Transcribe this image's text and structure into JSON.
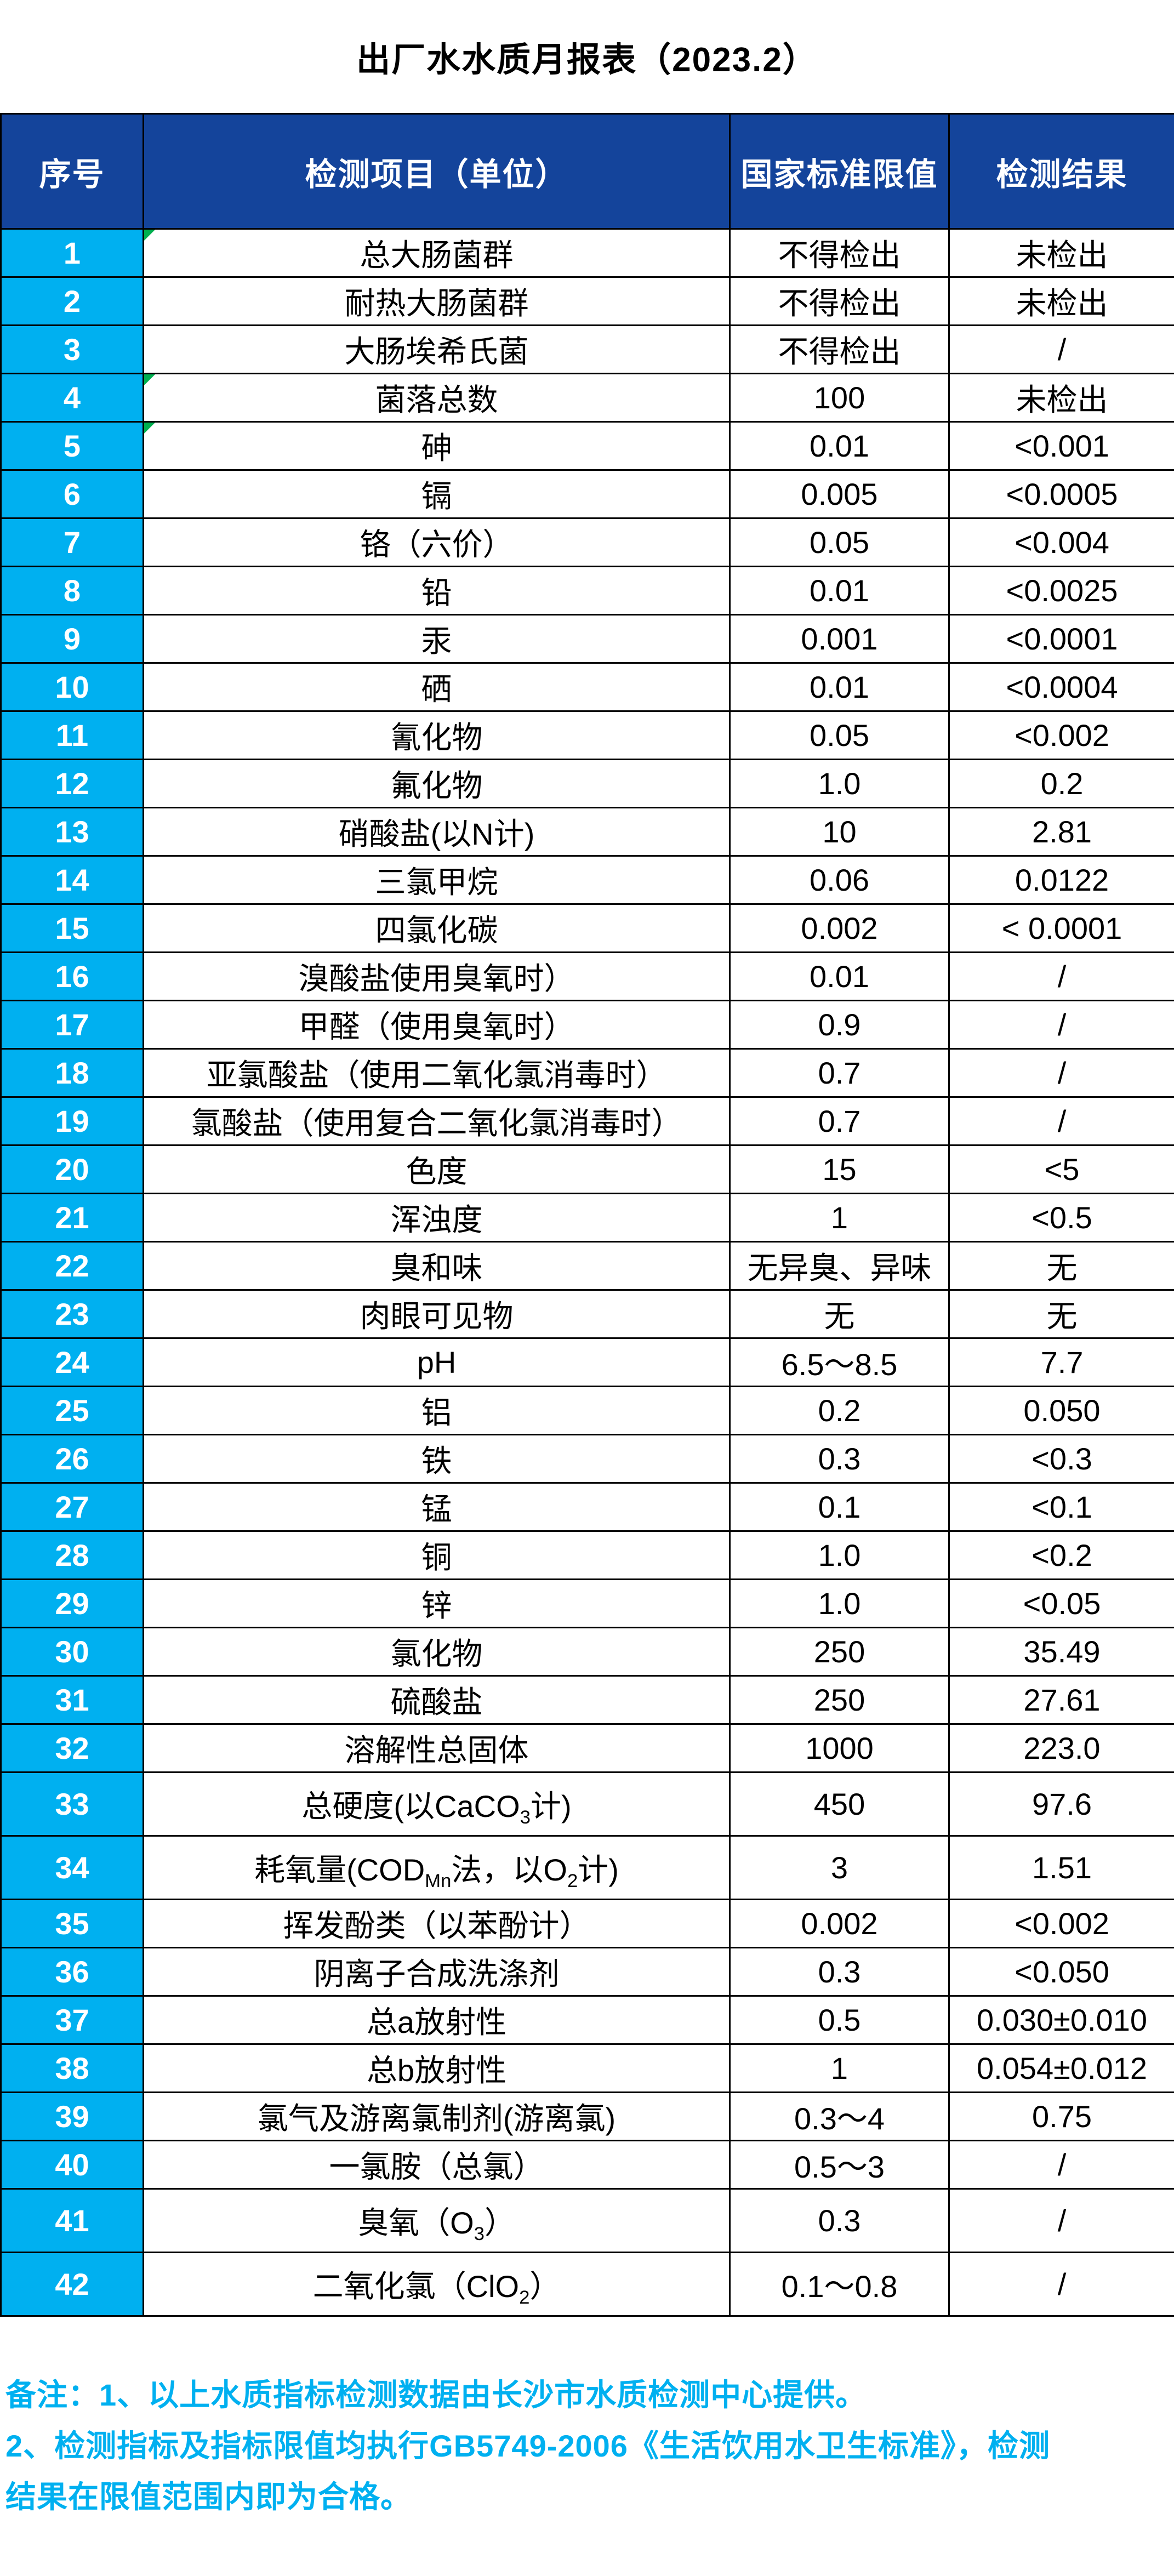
{
  "title": "出厂水水质月报表（2023.2）",
  "colors": {
    "header_bg": "#14449B",
    "index_bg": "#00B0F0",
    "note_text": "#00B0F0",
    "border": "#000000",
    "flag_green": "#00B050"
  },
  "table": {
    "headers": {
      "no": "序号",
      "item": "检测项目（单位）",
      "limit": "国家标准限值",
      "result": "检测结果"
    },
    "flagged_rows": [
      1,
      4,
      5
    ],
    "rows": [
      {
        "no": "1",
        "item": "总大肠菌群",
        "limit": "不得检出",
        "result": "未检出"
      },
      {
        "no": "2",
        "item": "耐热大肠菌群",
        "limit": "不得检出",
        "result": "未检出"
      },
      {
        "no": "3",
        "item": "大肠埃希氏菌",
        "limit": "不得检出",
        "result": "/"
      },
      {
        "no": "4",
        "item": "菌落总数",
        "limit": "100",
        "result": "未检出"
      },
      {
        "no": "5",
        "item": "砷",
        "limit": "0.01",
        "result": "<0.001"
      },
      {
        "no": "6",
        "item": "镉",
        "limit": "0.005",
        "result": "<0.0005"
      },
      {
        "no": "7",
        "item": "铬（六价）",
        "limit": "0.05",
        "result": "<0.004"
      },
      {
        "no": "8",
        "item": "铅",
        "limit": "0.01",
        "result": "<0.0025"
      },
      {
        "no": "9",
        "item": "汞",
        "limit": "0.001",
        "result": "<0.0001"
      },
      {
        "no": "10",
        "item": "硒",
        "limit": "0.01",
        "result": "<0.0004"
      },
      {
        "no": "11",
        "item": "氰化物",
        "limit": "0.05",
        "result": "<0.002"
      },
      {
        "no": "12",
        "item": "氟化物",
        "limit": "1.0",
        "result": "0.2"
      },
      {
        "no": "13",
        "item": "硝酸盐(以N计)",
        "limit": "10",
        "result": "2.81"
      },
      {
        "no": "14",
        "item": "三氯甲烷",
        "limit": "0.06",
        "result": "0.0122"
      },
      {
        "no": "15",
        "item": "四氯化碳",
        "limit": "0.002",
        "result": "< 0.0001"
      },
      {
        "no": "16",
        "item": "溴酸盐使用臭氧时）",
        "limit": "0.01",
        "result": "/"
      },
      {
        "no": "17",
        "item": "甲醛（使用臭氧时）",
        "limit": "0.9",
        "result": "/"
      },
      {
        "no": "18",
        "item": "亚氯酸盐（使用二氧化氯消毒时）",
        "limit": "0.7",
        "result": "/"
      },
      {
        "no": "19",
        "item": "氯酸盐（使用复合二氧化氯消毒时）",
        "limit": "0.7",
        "result": "/"
      },
      {
        "no": "20",
        "item": "色度",
        "limit": "15",
        "result": "<5"
      },
      {
        "no": "21",
        "item": "浑浊度",
        "limit": "1",
        "result": "<0.5"
      },
      {
        "no": "22",
        "item": "臭和味",
        "limit": "无异臭、异味",
        "result": "无"
      },
      {
        "no": "23",
        "item": "肉眼可见物",
        "limit": "无",
        "result": "无"
      },
      {
        "no": "24",
        "item": "pH",
        "limit": "6.5～8.5",
        "result": "7.7"
      },
      {
        "no": "25",
        "item": "铝",
        "limit": "0.2",
        "result": "0.050"
      },
      {
        "no": "26",
        "item": "铁",
        "limit": "0.3",
        "result": "<0.3"
      },
      {
        "no": "27",
        "item": "锰",
        "limit": "0.1",
        "result": "<0.1"
      },
      {
        "no": "28",
        "item": "铜",
        "limit": "1.0",
        "result": "<0.2"
      },
      {
        "no": "29",
        "item": "锌",
        "limit": "1.0",
        "result": "<0.05"
      },
      {
        "no": "30",
        "item": "氯化物",
        "limit": "250",
        "result": "35.49"
      },
      {
        "no": "31",
        "item": "硫酸盐",
        "limit": "250",
        "result": "27.61"
      },
      {
        "no": "32",
        "item": "溶解性总固体",
        "limit": "1000",
        "result": "223.0"
      },
      {
        "no": "33",
        "item": "总硬度(以CaCO{3}计)",
        "limit": "450",
        "result": "97.6"
      },
      {
        "no": "34",
        "item": "耗氧量(COD{Mn}法，以O{2}计)",
        "limit": "3",
        "result": "1.51"
      },
      {
        "no": "35",
        "item": "挥发酚类（以苯酚计）",
        "limit": "0.002",
        "result": "<0.002"
      },
      {
        "no": "36",
        "item": "阴离子合成洗涤剂",
        "limit": "0.3",
        "result": "<0.050"
      },
      {
        "no": "37",
        "item": "总a放射性",
        "limit": "0.5",
        "result": "0.030±0.010"
      },
      {
        "no": "38",
        "item": "总b放射性",
        "limit": "1",
        "result": "0.054±0.012"
      },
      {
        "no": "39",
        "item": "氯气及游离氯制剂(游离氯)",
        "limit": "0.3～4",
        "result": "0.75"
      },
      {
        "no": "40",
        "item": "一氯胺（总氯）",
        "limit": "0.5～3",
        "result": "/"
      },
      {
        "no": "41",
        "item": "臭氧（O{3}）",
        "limit": "0.3",
        "result": "/"
      },
      {
        "no": "42",
        "item": "二氧化氯（ClO{2}）",
        "limit": "0.1～0.8",
        "result": "/"
      }
    ]
  },
  "notes": {
    "lines": [
      "备注：1、以上水质指标检测数据由长沙市水质检测中心提供。",
      "2、检测指标及指标限值均执行GB5749-2006《生活饮用水卫生标准》，检测",
      "结果在限值范围内即为合格。"
    ]
  }
}
